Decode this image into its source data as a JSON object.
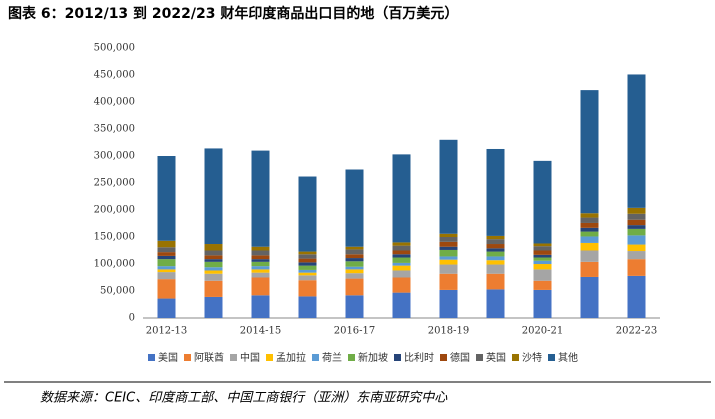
{
  "chart_data": {
    "type": "stacked-bar",
    "title": "图表 6：2012/13 到 2022/23 财年印度商品出口目的地（百万美元）",
    "source": "数据来源：CEIC、印度商工部、中国工商银行（亚洲）东南亚研究中心",
    "categories": [
      "2012-13",
      null,
      "2014-15",
      null,
      "2016-17",
      null,
      "2018-19",
      null,
      "2020-21",
      null,
      "2022-23"
    ],
    "ylim": [
      0,
      500000
    ],
    "yticks": [
      0,
      {
        "value": 50000,
        "label": "50,000"
      },
      {
        "value": 100000,
        "label": "100,000"
      },
      {
        "value": 150000,
        "label": "150,000"
      },
      {
        "value": 200000,
        "label": "200,000"
      },
      {
        "value": 250000,
        "label": "250,000"
      },
      {
        "value": 300000,
        "label": "300,000"
      },
      {
        "value": 350000,
        "label": "350,000"
      },
      {
        "value": 400000,
        "label": "400,000"
      },
      {
        "value": 450000,
        "label": "450,000"
      },
      {
        "value": 500000,
        "label": "500,000"
      }
    ],
    "series": [
      {
        "name": "美国",
        "color": "#4472c4",
        "values": [
          36000,
          39000,
          42000,
          40000,
          42000,
          47000,
          52000,
          53000,
          52000,
          76000,
          78000
        ]
      },
      {
        "name": "阿联酋",
        "color": "#ed7d31",
        "values": [
          36000,
          30000,
          33000,
          30000,
          31000,
          28000,
          30000,
          29000,
          17000,
          28000,
          31000
        ]
      },
      {
        "name": "中国",
        "color": "#a5a5a5",
        "values": [
          13000,
          13000,
          9000,
          9000,
          10000,
          13000,
          17000,
          17000,
          21000,
          21000,
          15000
        ]
      },
      {
        "name": "孟加拉",
        "color": "#ffc000",
        "values": [
          5000,
          6000,
          6000,
          5000,
          7000,
          9000,
          9000,
          8000,
          10000,
          14000,
          12000
        ]
      },
      {
        "name": "荷兰",
        "color": "#5b9bd5",
        "values": [
          6000,
          6000,
          6000,
          5000,
          5000,
          5000,
          6000,
          7000,
          6000,
          12000,
          17000
        ]
      },
      {
        "name": "新加坡",
        "color": "#70ad47",
        "values": [
          13000,
          10000,
          8000,
          8000,
          10000,
          10000,
          12000,
          9000,
          6000,
          9000,
          12000
        ]
      },
      {
        "name": "比利时",
        "color": "#264478",
        "values": [
          6000,
          5000,
          5000,
          6000,
          6000,
          6000,
          6000,
          6000,
          5000,
          7000,
          7000
        ]
      },
      {
        "name": "德国",
        "color": "#9e480e",
        "values": [
          7000,
          7000,
          7000,
          7000,
          7000,
          7000,
          9000,
          8000,
          8000,
          9000,
          10000
        ]
      },
      {
        "name": "英国",
        "color": "#636363",
        "values": [
          9000,
          9000,
          9000,
          8000,
          9000,
          9000,
          9000,
          9000,
          8000,
          10000,
          11000
        ]
      },
      {
        "name": "沙特",
        "color": "#997300",
        "values": [
          12000,
          12000,
          7000,
          5000,
          5000,
          6000,
          6000,
          6000,
          5000,
          8000,
          11000
        ]
      },
      {
        "name": "其他",
        "color": "#255e91",
        "values": [
          157000,
          177000,
          178000,
          139000,
          143000,
          163000,
          174000,
          161000,
          153000,
          228000,
          247000
        ]
      }
    ]
  }
}
